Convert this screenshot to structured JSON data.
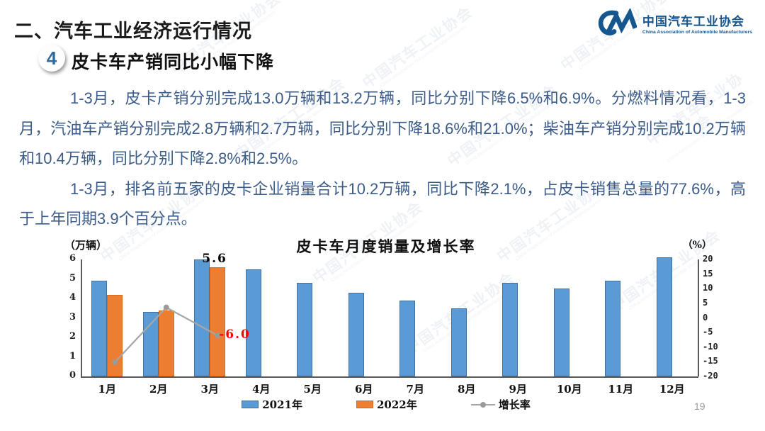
{
  "slide": {
    "section_title": "二、汽车工业经济运行情况",
    "item_number": "4",
    "item_title": "皮卡车产销同比小幅下降",
    "paragraphs": [
      "1-3月，皮卡产销分别完成13.0万辆和13.2万辆，同比分别下降6.5%和6.9%。分燃料情况看，1-3月，汽油车产销分别完成2.8万辆和2.7万辆，同比分别下降18.6%和21.0%；柴油车产销分别完成10.2万辆和10.4万辆，同比分别下降2.8%和2.5%。",
      "1-3月，排名前五家的皮卡企业销量合计10.2万辆，同比下降2.1%，占皮卡销售总量的77.6%，高于上年同期3.9个百分点。"
    ],
    "page_number": "19"
  },
  "logo": {
    "name_cn": "中国汽车工业协会",
    "name_en": "China Association of Automobile Manufacturers",
    "color": "#16568f"
  },
  "watermark": {
    "text_cn": "中国汽车工业协会",
    "text_en": "China Association of Automobile Manufacturers"
  },
  "chart_data": {
    "type": "bar",
    "subtype": "bar+line combo",
    "title": "皮卡车月度销量及增长率",
    "unit_left": "（万辆）",
    "unit_right": "（%）",
    "categories": [
      "1月",
      "2月",
      "3月",
      "4月",
      "5月",
      "6月",
      "7月",
      "8月",
      "9月",
      "10月",
      "11月",
      "12月"
    ],
    "series": [
      {
        "name": "2021年",
        "type": "bar",
        "color": "#5b9bd5",
        "border": "#41719c",
        "values": [
          4.9,
          3.3,
          6.0,
          5.5,
          4.8,
          4.3,
          3.9,
          3.5,
          4.8,
          4.5,
          4.9,
          6.1
        ]
      },
      {
        "name": "2022年",
        "type": "bar",
        "color": "#ed7d31",
        "border": "#d86a1d",
        "values": [
          4.2,
          3.4,
          5.6,
          null,
          null,
          null,
          null,
          null,
          null,
          null,
          null,
          null
        ]
      },
      {
        "name": "增长率",
        "type": "line",
        "color": "#a6a6a6",
        "values": [
          -15.1,
          3.6,
          -6.0,
          null,
          null,
          null,
          null,
          null,
          null,
          null,
          null,
          null
        ]
      }
    ],
    "left_axis": {
      "min": 0,
      "max": 6,
      "step": 1,
      "ticks": [
        "0",
        "1",
        "2",
        "3",
        "4",
        "5",
        "6"
      ]
    },
    "right_axis": {
      "min": -20,
      "max": 20,
      "step": 5,
      "ticks": [
        "-20",
        "-15",
        "-10",
        "-5",
        "0",
        "5",
        "10",
        "15",
        "20"
      ]
    },
    "data_labels": [
      {
        "series": 1,
        "index": 2,
        "text": "5.6",
        "color": "#000000"
      },
      {
        "series": 2,
        "index": 2,
        "text": "-6.0",
        "color": "#ff0000"
      }
    ],
    "legend": [
      "2021年",
      "2022年",
      "增长率"
    ],
    "legend_position": "bottom",
    "grid": false
  }
}
